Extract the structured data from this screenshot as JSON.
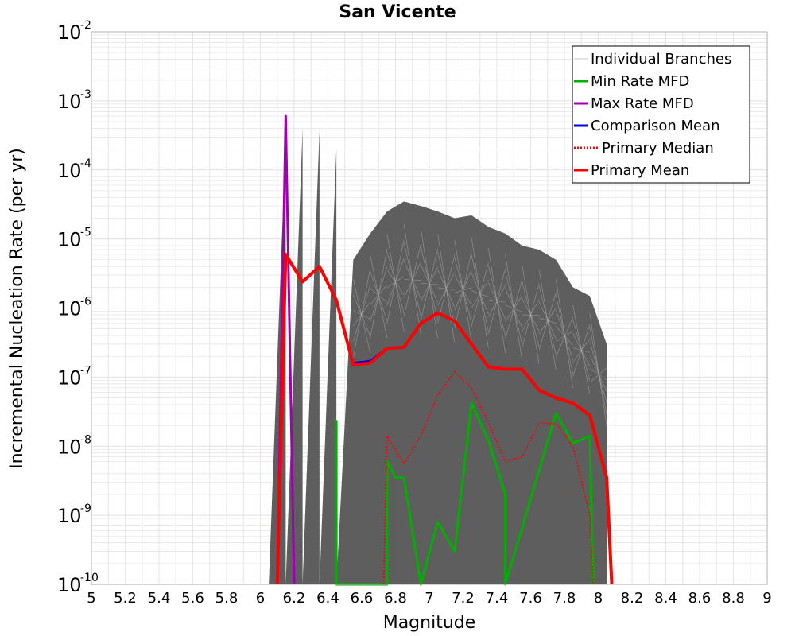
{
  "chart_data": {
    "type": "line",
    "title": "San Vicente",
    "xlabel": "Magnitude",
    "ylabel": "Incremental Nucleation Rate (per yr)",
    "xlim": [
      5,
      9
    ],
    "ylim": [
      1e-10,
      0.01
    ],
    "yscale": "log",
    "grid": true,
    "legend_position": "top-right",
    "x_ticks": [
      "5",
      "5.2",
      "5.4",
      "5.6",
      "5.8",
      "6",
      "6.2",
      "6.4",
      "6.6",
      "6.8",
      "7",
      "7.2",
      "7.4",
      "7.6",
      "7.8",
      "8",
      "8.2",
      "8.4",
      "8.6",
      "8.8",
      "9"
    ],
    "y_ticks": [
      {
        "base": "10",
        "exp": "-2",
        "value": 0.01
      },
      {
        "base": "10",
        "exp": "-3",
        "value": 0.001
      },
      {
        "base": "10",
        "exp": "-4",
        "value": 0.0001
      },
      {
        "base": "10",
        "exp": "-5",
        "value": 1e-05
      },
      {
        "base": "10",
        "exp": "-6",
        "value": 1e-06
      },
      {
        "base": "10",
        "exp": "-7",
        "value": 1e-07
      },
      {
        "base": "10",
        "exp": "-8",
        "value": 1e-08
      },
      {
        "base": "10",
        "exp": "-9",
        "value": 1e-09
      },
      {
        "base": "10",
        "exp": "-10",
        "value": 1e-10
      }
    ],
    "branch_envelope": {
      "x": [
        6.05,
        6.15,
        6.15,
        6.25,
        6.25,
        6.35,
        6.35,
        6.45,
        6.45,
        6.55,
        6.65,
        6.75,
        6.85,
        6.95,
        7.05,
        7.15,
        7.25,
        7.35,
        7.45,
        7.55,
        7.65,
        7.75,
        7.85,
        7.95,
        8.05
      ],
      "upper": [
        1e-10,
        0.0003,
        1e-10,
        0.0004,
        1e-10,
        0.00038,
        1e-10,
        0.0002,
        1e-10,
        5e-06,
        1.2e-05,
        2.5e-05,
        3.5e-05,
        3e-05,
        2.5e-05,
        2e-05,
        2.2e-05,
        1.5e-05,
        1.2e-05,
        8e-06,
        7e-06,
        5e-06,
        2e-06,
        1.5e-06,
        3e-07
      ]
    },
    "series": [
      {
        "name": "Individual Branches",
        "color": "#c8c8c8",
        "style": "thin"
      },
      {
        "name": "Min Rate MFD",
        "color": "#00b000",
        "x": [
          6.45,
          6.45,
          6.45,
          6.75,
          6.75,
          6.8,
          6.85,
          6.95,
          7.05,
          7.15,
          7.25,
          7.35,
          7.45,
          7.45,
          7.75,
          7.85,
          7.95,
          7.97
        ],
        "y": [
          1e-10,
          2.3e-08,
          1e-10,
          1e-10,
          6e-09,
          3.5e-09,
          3.5e-09,
          1e-10,
          8e-10,
          3e-10,
          4.2e-08,
          1.2e-08,
          2e-09,
          1e-10,
          3e-08,
          1.1e-08,
          1.4e-08,
          1e-10
        ]
      },
      {
        "name": "Max Rate MFD",
        "color": "#a000b0",
        "x": [
          6.1,
          6.15,
          6.2
        ],
        "y": [
          1e-10,
          0.0006,
          1e-10
        ]
      },
      {
        "name": "Comparison Mean",
        "color": "#0000dd",
        "x": [
          6.55,
          6.65,
          6.75
        ],
        "y": [
          1.6e-07,
          1.7e-07,
          2.6e-07
        ]
      },
      {
        "name": "Primary Median",
        "color": "#ff0000",
        "dash": true,
        "x": [
          6.73,
          6.75,
          6.85,
          6.95,
          7.05,
          7.15,
          7.25,
          7.35,
          7.45,
          7.55,
          7.65,
          7.75,
          7.85,
          7.95,
          7.97
        ],
        "y": [
          1e-10,
          1.4e-08,
          5.5e-09,
          1.4e-08,
          5.5e-08,
          1.2e-07,
          7e-08,
          2.2e-08,
          6e-09,
          7e-09,
          2.2e-08,
          2.1e-08,
          1e-08,
          1e-09,
          1e-10
        ]
      },
      {
        "name": "Primary Mean",
        "color": "#ff0000",
        "x": [
          6.1,
          6.15,
          6.25,
          6.35,
          6.45,
          6.55,
          6.65,
          6.75,
          6.85,
          6.95,
          7.05,
          7.15,
          7.25,
          7.35,
          7.45,
          7.55,
          7.65,
          7.75,
          7.85,
          7.95,
          8.05,
          8.08
        ],
        "y": [
          1e-10,
          6e-06,
          2.4e-06,
          4e-06,
          1.3e-06,
          1.5e-07,
          1.6e-07,
          2.6e-07,
          2.7e-07,
          6e-07,
          8.5e-07,
          6.5e-07,
          3e-07,
          1.4e-07,
          1.3e-07,
          1.3e-07,
          6.5e-08,
          5e-08,
          4.2e-08,
          2.8e-08,
          3.5e-09,
          1e-10
        ]
      }
    ]
  },
  "colors": {
    "branch_fill": "#555555",
    "branch_line": "#bbbbbb",
    "grid": "#e6e6e6",
    "frame": "#b0b0b0",
    "legend_border": "#000000"
  }
}
